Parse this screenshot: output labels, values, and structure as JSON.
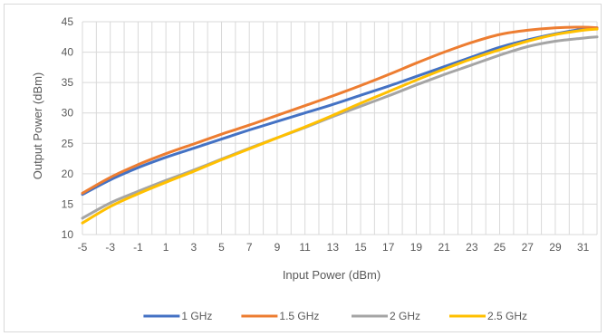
{
  "chart_data": {
    "type": "line",
    "title": "",
    "xlabel": "Input Power (dBm)",
    "ylabel": "Output Power (dBm)",
    "xlim": [
      -5,
      32
    ],
    "ylim": [
      10,
      45
    ],
    "x_ticks": [
      -5,
      -3,
      -1,
      1,
      3,
      5,
      7,
      9,
      11,
      13,
      15,
      17,
      19,
      21,
      23,
      25,
      27,
      29,
      31
    ],
    "x_tick_labels": [
      "-5",
      "-3",
      "-1",
      "1",
      "3",
      "5",
      "7",
      "9",
      "11",
      "13",
      "15",
      "17",
      "19",
      "21",
      "23",
      "25",
      "27",
      "29",
      "31"
    ],
    "y_ticks": [
      10,
      15,
      20,
      25,
      30,
      35,
      40,
      45
    ],
    "y_tick_labels": [
      "10",
      "15",
      "20",
      "25",
      "30",
      "35",
      "40",
      "45"
    ],
    "grid": true,
    "legend": "bottom",
    "x": [
      -5,
      -3,
      -1,
      1,
      3,
      5,
      7,
      9,
      11,
      13,
      15,
      17,
      19,
      21,
      23,
      25,
      27,
      29,
      31,
      32
    ],
    "series": [
      {
        "name": "1 GHz",
        "color": "#4472C4",
        "values": [
          16.6,
          19.0,
          21.0,
          22.7,
          24.2,
          25.7,
          27.2,
          28.6,
          30.0,
          31.4,
          32.9,
          34.4,
          36.0,
          37.6,
          39.2,
          40.8,
          42.0,
          43.0,
          43.8,
          44.0
        ]
      },
      {
        "name": "1.5 GHz",
        "color": "#ED7D31",
        "values": [
          16.8,
          19.4,
          21.5,
          23.3,
          24.9,
          26.5,
          28.0,
          29.6,
          31.2,
          32.8,
          34.5,
          36.3,
          38.2,
          40.0,
          41.6,
          42.9,
          43.6,
          44.0,
          44.1,
          44.0
        ]
      },
      {
        "name": "2 GHz",
        "color": "#A5A5A5",
        "values": [
          12.7,
          15.2,
          17.1,
          18.9,
          20.6,
          22.4,
          24.2,
          25.9,
          27.6,
          29.4,
          31.1,
          32.8,
          34.6,
          36.3,
          37.9,
          39.5,
          40.9,
          41.8,
          42.3,
          42.5
        ]
      },
      {
        "name": "2.5 GHz",
        "color": "#FFC000",
        "values": [
          11.9,
          14.6,
          16.7,
          18.6,
          20.4,
          22.3,
          24.1,
          25.9,
          27.7,
          29.6,
          31.6,
          33.5,
          35.4,
          37.2,
          38.9,
          40.4,
          41.8,
          42.9,
          43.6,
          43.8
        ]
      }
    ]
  }
}
